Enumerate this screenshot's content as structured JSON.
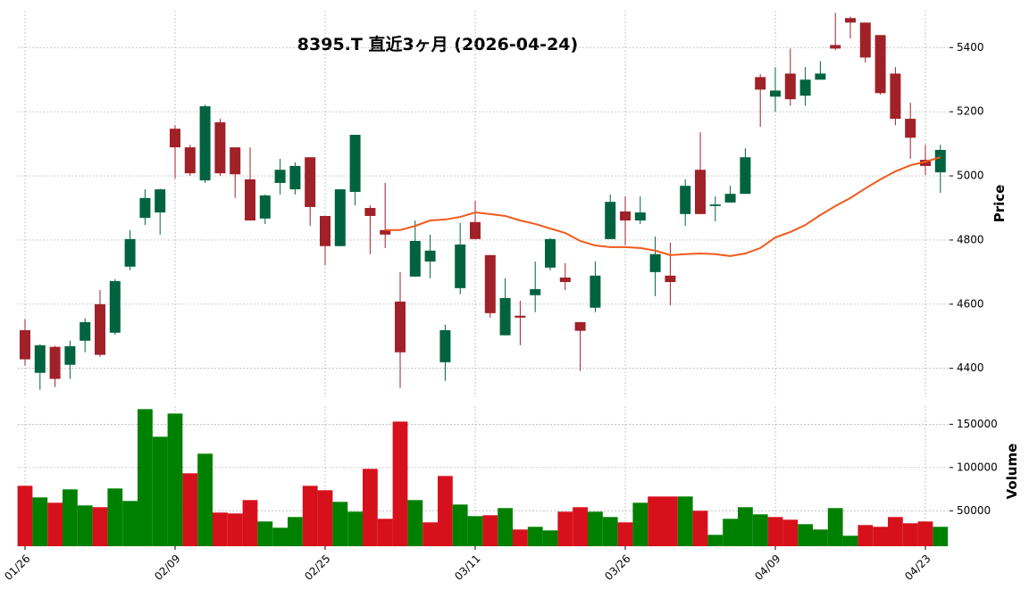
{
  "chart_data": {
    "type": "candlestick",
    "title": "8395.T  直近3ヶ月  (2026-04-24)",
    "categories": [
      "01/26",
      null,
      null,
      null,
      null,
      null,
      null,
      null,
      null,
      null,
      "02/09",
      null,
      null,
      null,
      null,
      null,
      null,
      null,
      null,
      null,
      "02/25",
      null,
      null,
      null,
      null,
      null,
      null,
      null,
      null,
      null,
      "03/11",
      null,
      null,
      null,
      null,
      null,
      null,
      null,
      null,
      null,
      "03/26",
      null,
      null,
      null,
      null,
      null,
      null,
      null,
      null,
      null,
      "04/09",
      null,
      null,
      null,
      null,
      null,
      null,
      null,
      null,
      null,
      "04/23",
      null
    ],
    "open": [
      4519,
      4386,
      4467,
      4411,
      4486,
      4600,
      4511,
      4717,
      4869,
      4886,
      5147,
      5089,
      4986,
      5167,
      5089,
      4989,
      4867,
      4978,
      4958,
      5058,
      4875,
      4781,
      4950,
      4900,
      4831,
      4608,
      4686,
      4733,
      4419,
      4650,
      4856,
      4753,
      4503,
      4564,
      4628,
      4714,
      4683,
      4544,
      4589,
      4803,
      4889,
      4861,
      4700,
      4689,
      4881,
      5019,
      4906,
      4917,
      4944,
      5308,
      5247,
      5319,
      5250,
      5300,
      5408,
      5492,
      5478,
      5439,
      5319,
      5178,
      5050,
      5011
    ],
    "high": [
      4553,
      4475,
      4470,
      4486,
      4556,
      4644,
      4678,
      4831,
      4958,
      4960,
      5158,
      5097,
      5222,
      5178,
      5089,
      5089,
      4942,
      5053,
      5042,
      5058,
      4875,
      4958,
      5128,
      4908,
      4978,
      4700,
      4861,
      4817,
      4536,
      4853,
      4922,
      4753,
      4681,
      4611,
      4733,
      4806,
      4728,
      4544,
      4733,
      4942,
      4936,
      4936,
      4811,
      4792,
      4989,
      5136,
      4936,
      4969,
      5086,
      5317,
      5339,
      5397,
      5339,
      5358,
      5508,
      5497,
      5478,
      5439,
      5339,
      5228,
      5097,
      5097
    ],
    "low": [
      4408,
      4333,
      4342,
      4367,
      4450,
      4436,
      4505,
      4706,
      4847,
      4817,
      4992,
      5000,
      4978,
      5000,
      4931,
      4861,
      4850,
      4942,
      4942,
      4844,
      4722,
      4781,
      4908,
      4756,
      4775,
      4339,
      4686,
      4681,
      4361,
      4631,
      4803,
      4558,
      4503,
      4472,
      4575,
      4706,
      4644,
      4392,
      4575,
      4803,
      4783,
      4850,
      4625,
      4597,
      4844,
      4881,
      4858,
      4917,
      4944,
      5153,
      5200,
      5219,
      5219,
      5300,
      5392,
      5428,
      5353,
      5253,
      5158,
      5053,
      5003,
      4947
    ],
    "close": [
      4428,
      4472,
      4367,
      4469,
      4544,
      4442,
      4672,
      4803,
      4931,
      4958,
      5089,
      5008,
      5217,
      5008,
      5005,
      4861,
      4939,
      5019,
      5031,
      4903,
      4781,
      4958,
      5128,
      4875,
      4817,
      4450,
      4797,
      4767,
      4519,
      4786,
      4803,
      4572,
      4619,
      4558,
      4647,
      4803,
      4669,
      4517,
      4689,
      4919,
      4861,
      4886,
      4756,
      4669,
      4969,
      4881,
      4911,
      4944,
      5058,
      5269,
      5266,
      5239,
      5300,
      5319,
      5397,
      5478,
      5369,
      5258,
      5178,
      5119,
      5031,
      5081
    ],
    "up_color": "#006340",
    "down_color": "#a02128",
    "ylabel": "Price",
    "ylim": [
      4310,
      5515
    ],
    "yticks": [
      4400,
      4600,
      4800,
      5000,
      5200,
      5400
    ],
    "grid": true,
    "moving_average": {
      "color": "#f05a1a",
      "values": [
        null,
        null,
        null,
        null,
        null,
        null,
        null,
        null,
        null,
        null,
        null,
        null,
        null,
        null,
        null,
        null,
        null,
        null,
        null,
        null,
        null,
        null,
        null,
        null,
        4831,
        4831,
        4844,
        4861,
        4864,
        4872,
        4886,
        4881,
        4875,
        4861,
        4850,
        4836,
        4822,
        4797,
        4783,
        4778,
        4778,
        4775,
        4767,
        4753,
        4756,
        4758,
        4756,
        4750,
        4758,
        4775,
        4808,
        4825,
        4847,
        4878,
        4906,
        4931,
        4961,
        4989,
        5014,
        5033,
        5044,
        5058
      ]
    },
    "volume": {
      "label": "Volume",
      "up_color": "#008000",
      "down_color": "#d7111c",
      "ylim": [
        9000,
        171000
      ],
      "yticks": [
        50000,
        100000,
        150000
      ],
      "values": [
        78860,
        65460,
        59270,
        74740,
        56180,
        54120,
        75770,
        61340,
        167500,
        135570,
        162370,
        93300,
        115980,
        47930,
        46900,
        62360,
        37620,
        30400,
        42770,
        78860,
        73710,
        60300,
        48960,
        98450,
        40710,
        153090,
        62360,
        36590,
        90200,
        57210,
        43800,
        44830,
        53090,
        28340,
        31440,
        27310,
        48960,
        54120,
        48960,
        42770,
        36590,
        59270,
        66490,
        66490,
        66490,
        49990,
        22160,
        40710,
        54120,
        45870,
        42770,
        39680,
        34520,
        28340,
        53090,
        21120,
        33490,
        31440,
        42770,
        35550,
        37620,
        31440
      ]
    }
  }
}
